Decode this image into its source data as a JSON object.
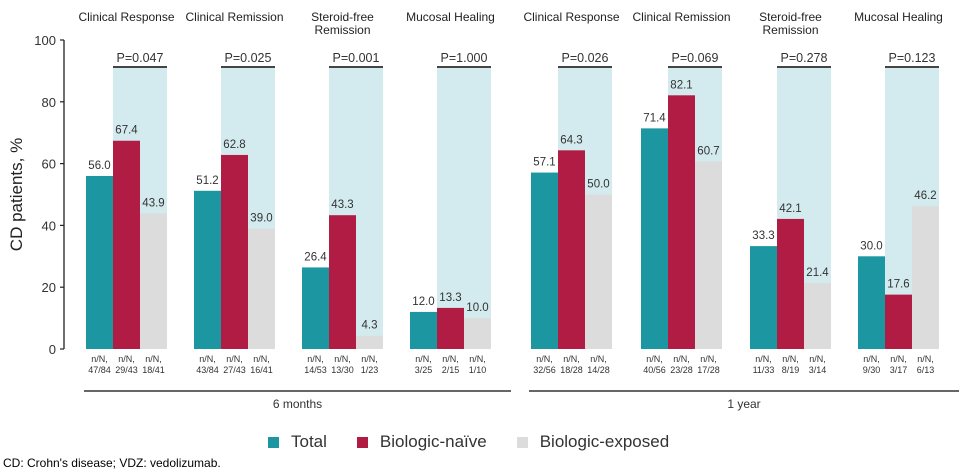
{
  "chart_data": {
    "type": "bar",
    "ylabel": "CD patients, %",
    "ylim": [
      0,
      100
    ],
    "yticks": [
      0,
      20,
      40,
      60,
      80,
      100
    ],
    "grid": false,
    "legend_position": "bottom",
    "series_names": [
      "Total",
      "Biologic-naïve",
      "Biologic-exposed"
    ],
    "colors": {
      "Total": "#1c97a1",
      "Biologic-naïve": "#b01c44",
      "Biologic-exposed": "#dcdcdc",
      "pvalue_band": "#d3ebee"
    },
    "periods": [
      {
        "label": "6 months",
        "groups": [
          {
            "title": [
              "Clinical Response"
            ],
            "pvalue": "P=0.047",
            "values": [
              56.0,
              67.4,
              43.9
            ],
            "labels": [
              "56.0",
              "67.4",
              "43.9"
            ],
            "nN": [
              "47/84",
              "29/43",
              "18/41"
            ]
          },
          {
            "title": [
              "Clinical Remission"
            ],
            "pvalue": "P=0.025",
            "values": [
              51.2,
              62.8,
              39.0
            ],
            "labels": [
              "51.2",
              "62.8",
              "39.0"
            ],
            "nN": [
              "43/84",
              "27/43",
              "16/41"
            ]
          },
          {
            "title": [
              "Steroid-free",
              "Remission"
            ],
            "pvalue": "P=0.001",
            "values": [
              26.4,
              43.3,
              4.3
            ],
            "labels": [
              "26.4",
              "43.3",
              "4.3"
            ],
            "nN": [
              "14/53",
              "13/30",
              "1/23"
            ]
          },
          {
            "title": [
              "Mucosal Healing"
            ],
            "pvalue": "P=1.000",
            "values": [
              12.0,
              13.3,
              10.0
            ],
            "labels": [
              "12.0",
              "13.3",
              "10.0"
            ],
            "nN": [
              "3/25",
              "2/15",
              "1/10"
            ]
          }
        ]
      },
      {
        "label": "1 year",
        "groups": [
          {
            "title": [
              "Clinical Response"
            ],
            "pvalue": "P=0.026",
            "values": [
              57.1,
              64.3,
              50.0
            ],
            "labels": [
              "57.1",
              "64.3",
              "50.0"
            ],
            "nN": [
              "32/56",
              "18/28",
              "14/28"
            ]
          },
          {
            "title": [
              "Clinical Remission"
            ],
            "pvalue": "P=0.069",
            "values": [
              71.4,
              82.1,
              60.7
            ],
            "labels": [
              "71.4",
              "82.1",
              "60.7"
            ],
            "nN": [
              "40/56",
              "23/28",
              "17/28"
            ]
          },
          {
            "title": [
              "Steroid-free",
              "Remission"
            ],
            "pvalue": "P=0.278",
            "values": [
              33.3,
              42.1,
              21.4
            ],
            "labels": [
              "33.3",
              "42.1",
              "21.4"
            ],
            "nN": [
              "11/33",
              "8/19",
              "3/14"
            ]
          },
          {
            "title": [
              "Mucosal Healing"
            ],
            "pvalue": "P=0.123",
            "values": [
              30.0,
              17.6,
              46.2
            ],
            "labels": [
              "30.0",
              "17.6",
              "46.2"
            ],
            "nN": [
              "9/30",
              "3/17",
              "6/13"
            ]
          }
        ]
      }
    ],
    "nN_prefix": "n/N,"
  },
  "legend": {
    "items": [
      {
        "label": "Total",
        "color": "#1c97a1"
      },
      {
        "label": "Biologic-naïve",
        "color": "#b01c44"
      },
      {
        "label": "Biologic-exposed",
        "color": "#dcdcdc"
      }
    ]
  },
  "footnote": "CD: Crohn's disease; VDZ: vedolizumab."
}
